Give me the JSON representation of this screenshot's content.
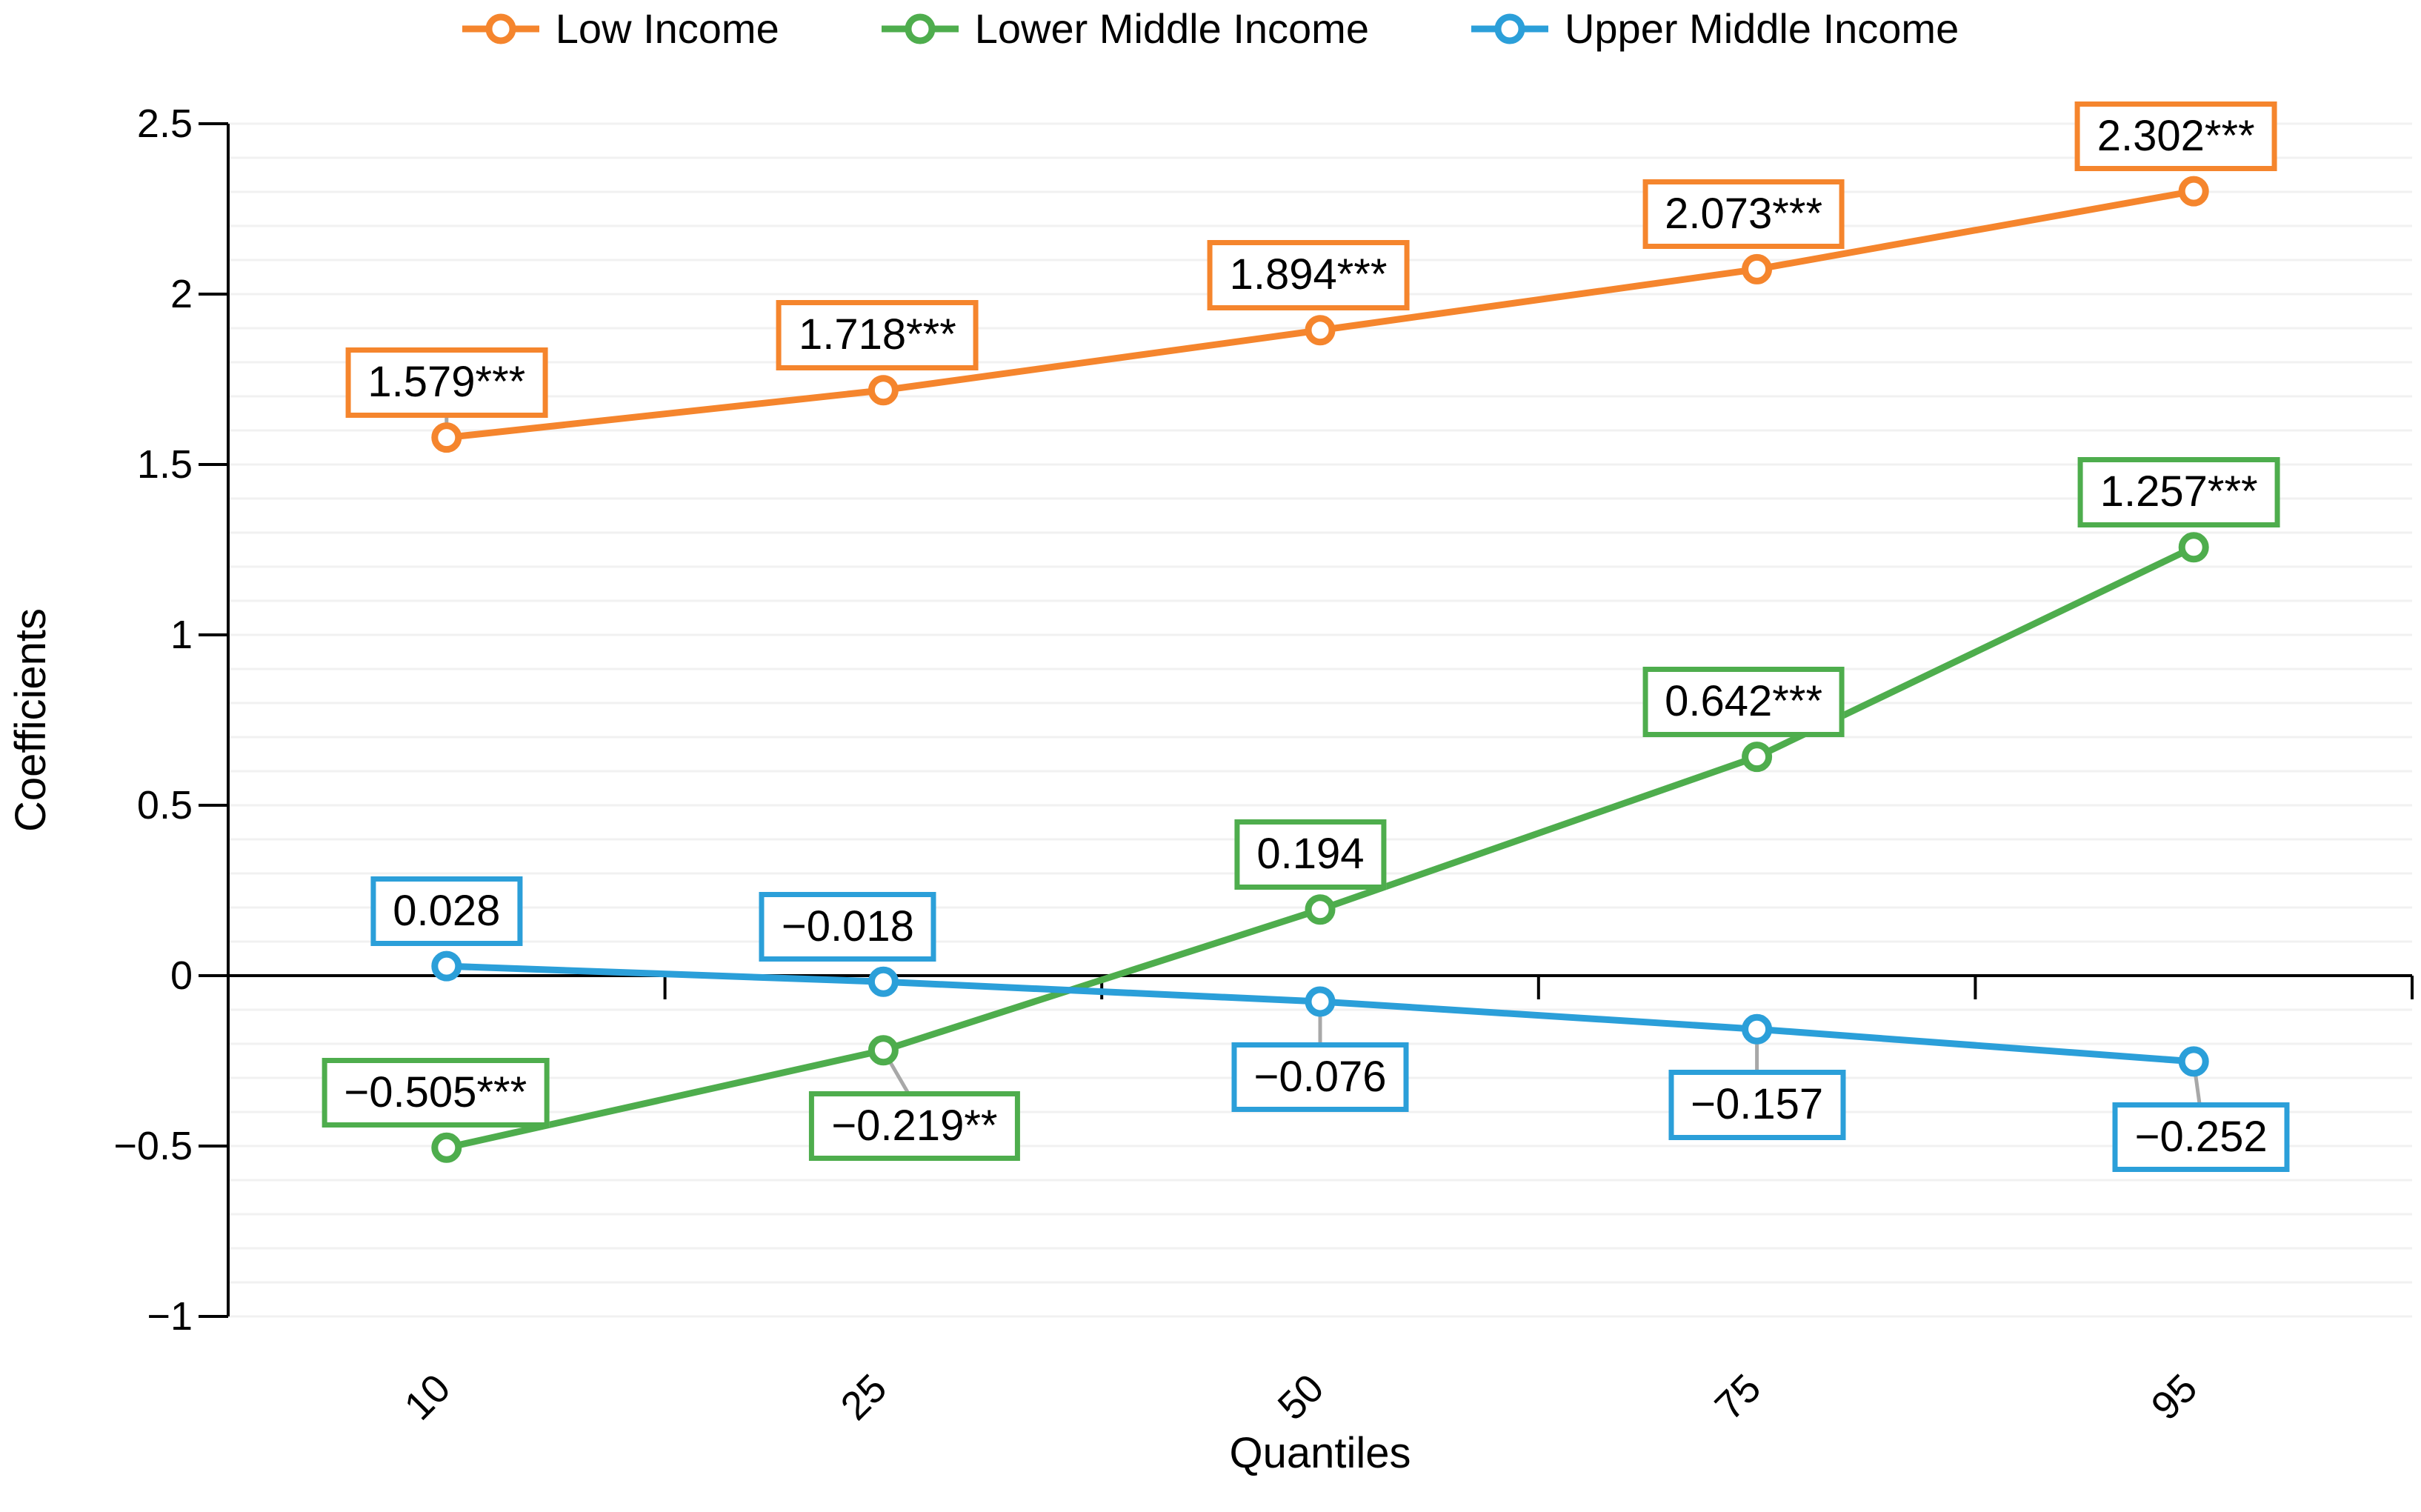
{
  "chart_data": {
    "type": "line",
    "xlabel": "Quantiles",
    "ylabel": "Coefficients",
    "categories": [
      "10",
      "25",
      "50",
      "75",
      "95"
    ],
    "ylim": [
      -1,
      2.5
    ],
    "y_major_step": 0.5,
    "y_minor_step": 0.1,
    "grid": "minor-horizontal",
    "legend_position": "top-center",
    "y_ticks": [
      {
        "v": 2.5,
        "label": "2.5"
      },
      {
        "v": 2,
        "label": "2"
      },
      {
        "v": 1.5,
        "label": "1.5"
      },
      {
        "v": 1,
        "label": "1"
      },
      {
        "v": 0.5,
        "label": "0.5"
      },
      {
        "v": 0,
        "label": "0"
      },
      {
        "v": -0.5,
        "label": "−0.5"
      },
      {
        "v": -1,
        "label": "−1"
      }
    ],
    "series": [
      {
        "name": "Low Income",
        "color": "#F5852D",
        "values": [
          1.579,
          1.718,
          1.894,
          2.073,
          2.302
        ],
        "point_labels": [
          {
            "text": "1.579***",
            "pos": "above",
            "leader": true,
            "dx": 0
          },
          {
            "text": "1.718***",
            "pos": "above",
            "leader": false,
            "dx": -8
          },
          {
            "text": "1.894***",
            "pos": "above",
            "leader": false,
            "dx": -16
          },
          {
            "text": "2.073***",
            "pos": "above",
            "leader": false,
            "dx": -18
          },
          {
            "text": "2.302***",
            "pos": "above",
            "leader": false,
            "dx": -24
          }
        ]
      },
      {
        "name": "Lower Middle Income",
        "color": "#4EAD4D",
        "values": [
          -0.505,
          -0.219,
          0.194,
          0.642,
          1.257
        ],
        "point_labels": [
          {
            "text": "−0.505***",
            "pos": "above",
            "leader": false,
            "dx": -15
          },
          {
            "text": "−0.219**",
            "pos": "below",
            "leader": true,
            "dx": 42
          },
          {
            "text": "0.194",
            "pos": "above",
            "leader": false,
            "dx": -13
          },
          {
            "text": "0.642***",
            "pos": "above",
            "leader": false,
            "dx": -18
          },
          {
            "text": "1.257***",
            "pos": "above",
            "leader": false,
            "dx": -20
          }
        ]
      },
      {
        "name": "Upper Middle Income",
        "color": "#2B9FD9",
        "values": [
          0.028,
          -0.018,
          -0.076,
          -0.157,
          -0.252
        ],
        "point_labels": [
          {
            "text": "0.028",
            "pos": "above",
            "leader": false,
            "dx": 0
          },
          {
            "text": "−0.018",
            "pos": "above",
            "leader": false,
            "dx": -48
          },
          {
            "text": "−0.076",
            "pos": "below",
            "leader": true,
            "dx": 0
          },
          {
            "text": "−0.157",
            "pos": "below",
            "leader": true,
            "dx": 0
          },
          {
            "text": "−0.252",
            "pos": "below",
            "leader": true,
            "dx": 10
          }
        ]
      }
    ]
  },
  "colors": {
    "axis": "#000000",
    "gridline": "#F1F1F1",
    "leader_line": "#A8A8A8",
    "label_text": "#000000",
    "background": "#FFFFFF"
  }
}
